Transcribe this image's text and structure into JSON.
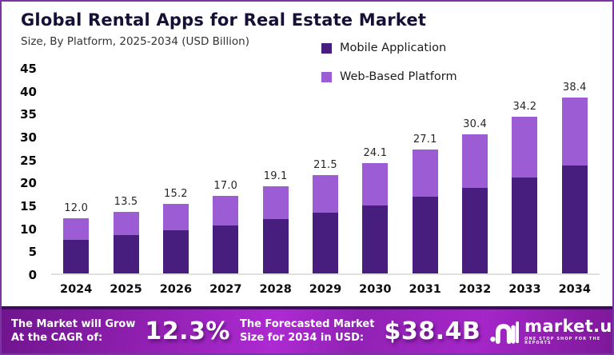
{
  "header": {
    "title": "Global Rental Apps for Real Estate Market",
    "subtitle": "Size, By Platform, 2025-2034 (USD Billion)"
  },
  "chart_data": {
    "type": "bar",
    "stacked": true,
    "title": "Global Rental Apps for Real Estate Market",
    "subtitle": "Size, By Platform, 2025-2034 (USD Billion)",
    "categories": [
      "2024",
      "2025",
      "2026",
      "2027",
      "2028",
      "2029",
      "2030",
      "2031",
      "2032",
      "2033",
      "2034"
    ],
    "series": [
      {
        "name": "Mobile Application",
        "color": "#471d7d",
        "values": [
          7.4,
          8.3,
          9.4,
          10.5,
          11.8,
          13.3,
          14.9,
          16.7,
          18.7,
          21.0,
          23.6
        ]
      },
      {
        "name": "Web-Based Platform",
        "color": "#9c5cd4",
        "values": [
          4.6,
          5.2,
          5.8,
          6.5,
          7.3,
          8.2,
          9.2,
          10.4,
          11.7,
          13.2,
          14.8
        ]
      }
    ],
    "totals": [
      12.0,
      13.5,
      15.2,
      17.0,
      19.1,
      21.5,
      24.1,
      27.1,
      30.4,
      34.2,
      38.4
    ],
    "ylim": [
      0,
      45
    ],
    "yticks": [
      0,
      5,
      10,
      15,
      20,
      25,
      30,
      35,
      40,
      45
    ],
    "grid": false,
    "legend_position": "top-right",
    "value_label_format": "one-decimal"
  },
  "banner": {
    "cagr_label_line1": "The Market will Grow",
    "cagr_label_line2": "At the CAGR of:",
    "cagr_value": "12.3%",
    "forecast_label_line1": "The Forecasted Market",
    "forecast_label_line2": "Size for 2034 in USD:",
    "forecast_value": "$38.4B",
    "logo_text": "market.us",
    "logo_tagline": "ONE STOP SHOP FOR THE REPORTS"
  },
  "colors": {
    "mobile_series": "#471d7d",
    "web_series": "#9c5cd4",
    "page_border": "#7b35a3",
    "banner_border_top": "#41085f",
    "banner_purple": "#9b27be"
  }
}
